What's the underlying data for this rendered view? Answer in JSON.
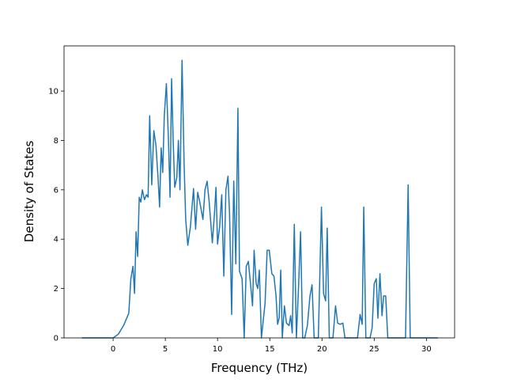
{
  "chart_data": {
    "type": "line",
    "x_label": "Frequency (THz)",
    "y_label": "Density of States",
    "xlim": [
      -4.7,
      32.7
    ],
    "ylim": [
      0,
      11.83
    ],
    "xticks": [
      0,
      5,
      10,
      15,
      20,
      25,
      30
    ],
    "yticks": [
      0,
      2,
      4,
      6,
      8,
      10
    ],
    "grid": false,
    "series": [
      {
        "color": "#1f77b4",
        "x": [
          -3.0,
          0,
          0.5,
          1.0,
          1.5,
          1.7,
          1.9,
          2.05,
          2.2,
          2.35,
          2.5,
          2.65,
          2.8,
          3.0,
          3.2,
          3.35,
          3.5,
          3.7,
          3.9,
          4.1,
          4.3,
          4.45,
          4.6,
          4.75,
          4.9,
          5.1,
          5.3,
          5.45,
          5.6,
          5.75,
          5.9,
          6.1,
          6.25,
          6.4,
          6.6,
          6.8,
          6.95,
          7.15,
          7.4,
          7.7,
          7.9,
          8.1,
          8.3,
          8.6,
          8.8,
          9.0,
          9.2,
          9.5,
          9.7,
          9.85,
          10.0,
          10.2,
          10.4,
          10.6,
          10.8,
          11.0,
          11.15,
          11.35,
          11.55,
          11.75,
          11.95,
          12.1,
          12.35,
          12.55,
          12.75,
          12.95,
          13.2,
          13.35,
          13.5,
          13.7,
          13.85,
          14.0,
          14.2,
          14.55,
          14.75,
          14.95,
          15.2,
          15.4,
          15.6,
          15.75,
          15.9,
          16.05,
          16.2,
          16.4,
          16.6,
          16.85,
          17.0,
          17.15,
          17.35,
          17.55,
          17.75,
          17.95,
          18.15,
          18.35,
          18.6,
          18.85,
          19.05,
          19.25,
          19.65,
          19.95,
          20.15,
          20.35,
          20.5,
          20.7,
          21.05,
          21.3,
          21.5,
          21.75,
          22.0,
          22.2,
          23.4,
          23.65,
          23.85,
          24.0,
          24.2,
          24.6,
          24.8,
          25.0,
          25.2,
          25.35,
          25.55,
          25.75,
          25.9,
          26.1,
          26.3,
          28.0,
          28.25,
          28.45,
          31.1
        ],
        "values": [
          0,
          0,
          0.15,
          0.5,
          1.0,
          2.4,
          2.9,
          1.8,
          4.3,
          3.3,
          5.7,
          5.5,
          6.0,
          5.6,
          5.8,
          5.7,
          9.0,
          6.2,
          8.4,
          7.8,
          6.5,
          5.3,
          7.7,
          6.7,
          9.0,
          10.3,
          8.0,
          5.7,
          10.5,
          8.0,
          6.1,
          6.5,
          8.0,
          6.0,
          11.25,
          7.0,
          4.8,
          3.75,
          4.5,
          6.05,
          4.4,
          5.9,
          5.5,
          4.8,
          6.0,
          6.35,
          5.5,
          3.85,
          5.0,
          6.1,
          3.8,
          4.5,
          5.8,
          2.5,
          6.0,
          6.55,
          5.0,
          0.95,
          6.35,
          3.0,
          9.3,
          2.7,
          2.4,
          0,
          2.9,
          3.1,
          2.0,
          1.3,
          3.55,
          2.2,
          2.0,
          2.75,
          0,
          1.4,
          3.55,
          3.55,
          2.6,
          2.5,
          1.7,
          0.55,
          0.8,
          2.75,
          0,
          1.3,
          0.6,
          0.5,
          0.9,
          0.2,
          4.6,
          0,
          2.0,
          4.3,
          0,
          0,
          0.5,
          1.7,
          2.15,
          0,
          0,
          5.3,
          1.8,
          1.5,
          4.45,
          0,
          0,
          1.3,
          0.6,
          0.55,
          0.6,
          0,
          0,
          0.95,
          0.55,
          5.3,
          0,
          0,
          0.4,
          2.2,
          2.4,
          0.8,
          2.6,
          0.9,
          1.7,
          1.7,
          0,
          0,
          6.2,
          0,
          0
        ]
      }
    ]
  }
}
